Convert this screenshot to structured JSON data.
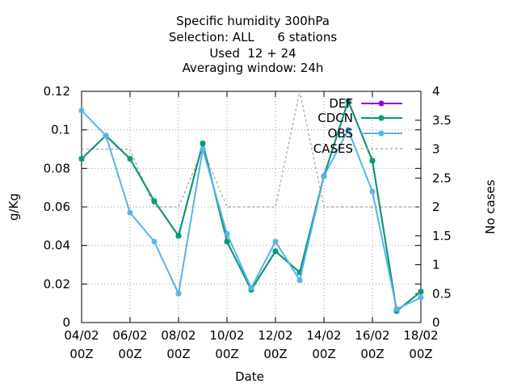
{
  "chart_data": {
    "type": "line",
    "title_lines": [
      "Specific humidity 300hPa",
      "Selection: ALL      6 stations",
      "Used  12 + 24",
      "Averaging window: 24h"
    ],
    "xlabel": "Date",
    "ylabel": "g/Kg",
    "y2label": "No cases",
    "x_ticks": [
      "04/02 00Z",
      "06/02 00Z",
      "08/02 00Z",
      "10/02 00Z",
      "12/02 00Z",
      "14/02 00Z",
      "16/02 00Z",
      "18/02 00Z"
    ],
    "x_tick_days": [
      0,
      2,
      4,
      6,
      8,
      10,
      12,
      14
    ],
    "x_days": [
      0,
      1,
      2,
      3,
      4,
      5,
      6,
      7,
      8,
      9,
      10,
      11,
      12,
      13,
      14
    ],
    "ylim": [
      0,
      0.12
    ],
    "y_ticks": [
      "0",
      "0.02",
      "0.04",
      "0.06",
      "0.08",
      "0.1",
      "0.12"
    ],
    "y2lim": [
      0,
      4
    ],
    "y2_ticks": [
      "0",
      "0.5",
      "1",
      "1.5",
      "2",
      "2.5",
      "3",
      "3.5",
      "4"
    ],
    "grid": true,
    "legend_position": "top-right",
    "series": [
      {
        "name": "DEF",
        "axis": "y1",
        "color": "#9400d3",
        "marker": "star",
        "values": [
          0.085,
          0.097,
          0.085,
          0.063,
          0.045,
          0.093,
          0.042,
          0.017,
          0.037,
          0.026,
          0.076,
          0.115,
          0.084,
          0.006,
          0.016
        ]
      },
      {
        "name": "CDCN",
        "axis": "y1",
        "color": "#009e73",
        "marker": "star",
        "values": [
          0.085,
          0.097,
          0.085,
          0.063,
          0.045,
          0.093,
          0.042,
          0.017,
          0.037,
          0.026,
          0.076,
          0.115,
          0.084,
          0.006,
          0.016
        ]
      },
      {
        "name": "OBS",
        "axis": "y1",
        "color": "#56b4e9",
        "marker": "star",
        "values": [
          0.11,
          0.097,
          0.057,
          0.042,
          0.015,
          0.09,
          0.046,
          0.018,
          0.042,
          0.022,
          0.076,
          0.1,
          0.068,
          0.007,
          0.013
        ]
      },
      {
        "name": "CASES",
        "axis": "y2",
        "color": "#a0a0a0",
        "dashed": true,
        "values": [
          3,
          3,
          3,
          2,
          2,
          3,
          2,
          2,
          2,
          4,
          2,
          2,
          2,
          2,
          2
        ]
      }
    ]
  }
}
